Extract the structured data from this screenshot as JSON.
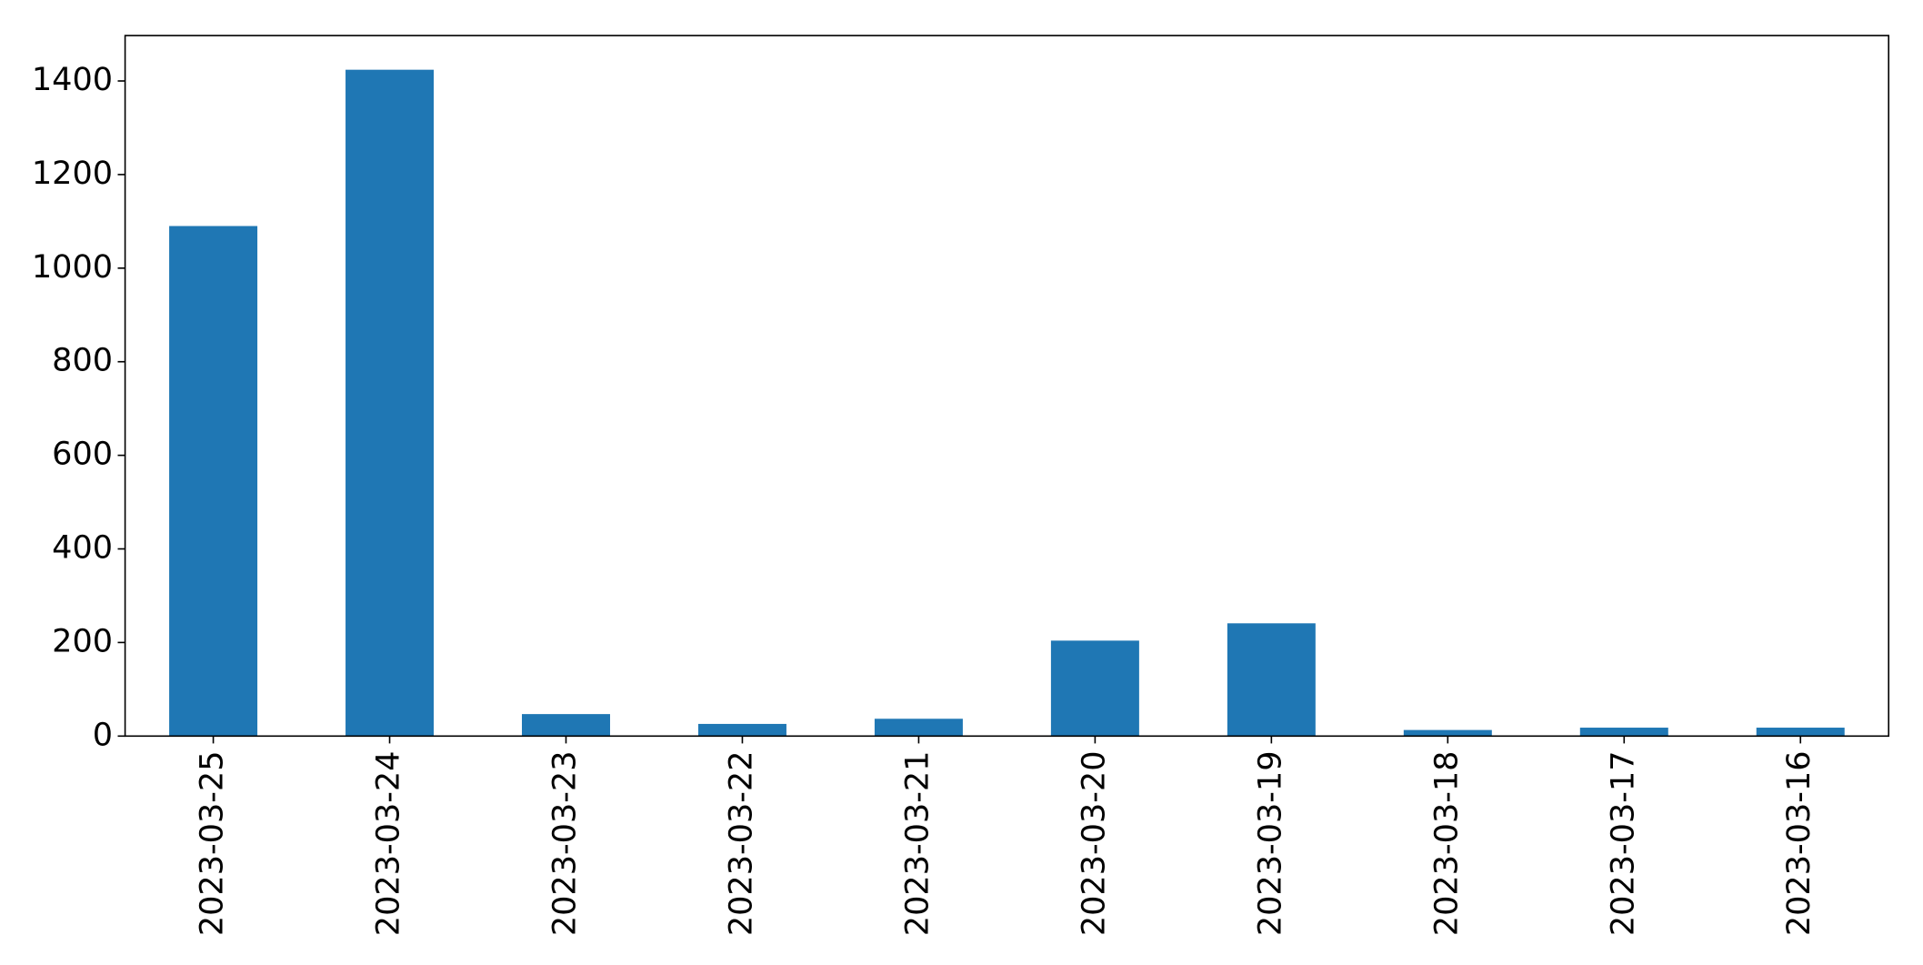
{
  "chart_data": {
    "type": "bar",
    "categories": [
      "2023-03-25",
      "2023-03-24",
      "2023-03-23",
      "2023-03-22",
      "2023-03-21",
      "2023-03-20",
      "2023-03-19",
      "2023-03-18",
      "2023-03-17",
      "2023-03-16"
    ],
    "values": [
      1090,
      1424,
      47,
      26,
      37,
      204,
      241,
      13,
      18,
      18
    ],
    "color": "#1f77b4",
    "ylim": [
      0,
      1497
    ],
    "yticks": [
      0,
      200,
      400,
      600,
      800,
      1000,
      1200,
      1400
    ],
    "grid": false
  }
}
